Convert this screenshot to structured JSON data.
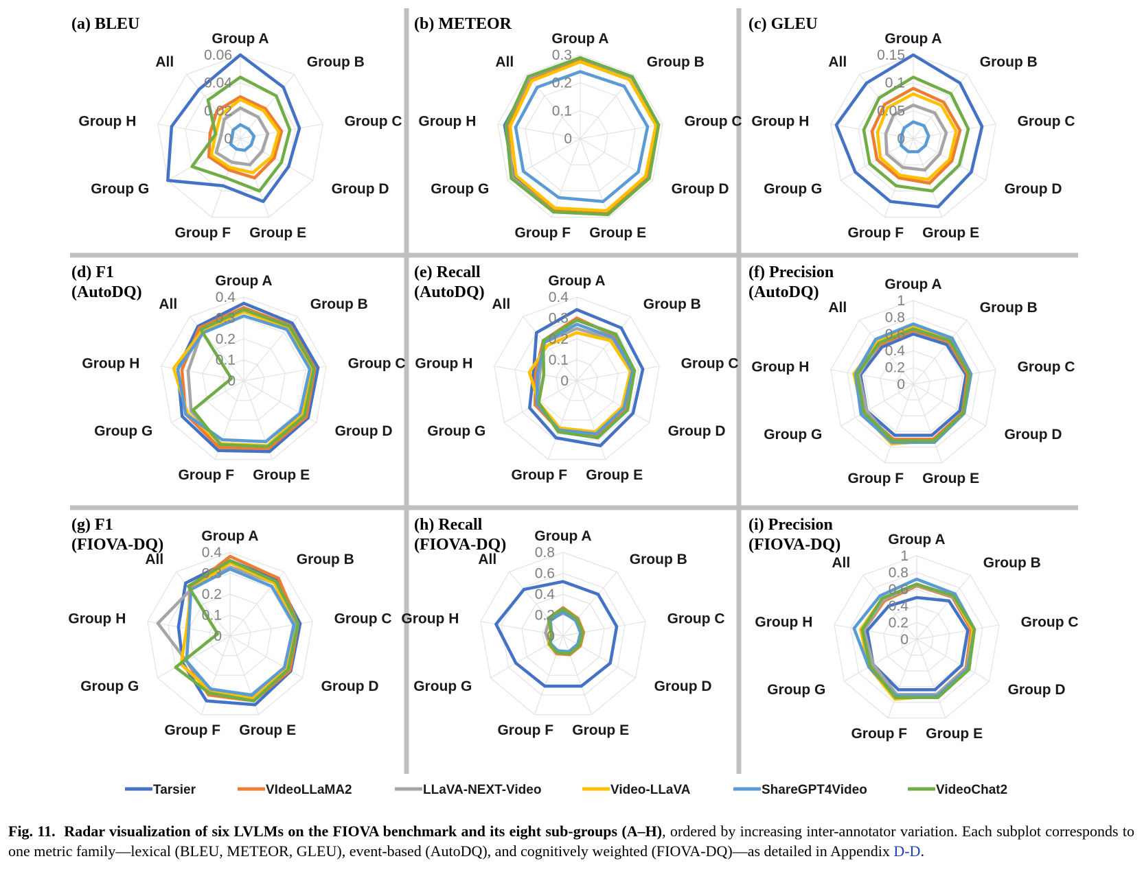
{
  "axes": [
    "Group A",
    "Group B",
    "Group C",
    "Group D",
    "Group E",
    "Group F",
    "Group G",
    "Group H",
    "All"
  ],
  "colors": {
    "Tarsier": "#4472c4",
    "VIdeoLLaMA2": "#ed7d31",
    "LLaVA-NEXT-Video": "#a5a5a5",
    "Video-LLaVA": "#ffc000",
    "ShareGPT4Video": "#5b9bd5",
    "VideoChat2": "#70ad47"
  },
  "legend": [
    "Tarsier",
    "VIdeoLLaMA2",
    "LLaVA-NEXT-Video",
    "Video-LLaVA",
    "ShareGPT4Video",
    "VideoChat2"
  ],
  "caption": {
    "fig_label": "Fig. 11.",
    "bold_text": "Radar visualization of six LVLMs on the FIOVA benchmark and its eight sub-groups (A–H)",
    "text": ", ordered by increasing inter-annotator variation. Each subplot corresponds to one metric family—lexical (BLEU, METEOR, GLEU), event-based (AutoDQ), and cognitively weighted (FIOVA-DQ)—as detailed in Appendix ",
    "link": "D-D",
    "end": "."
  },
  "chart_data": [
    {
      "type": "radar",
      "title": [
        "(a) BLEU"
      ],
      "rmax": 0.06,
      "ticks": [
        "0",
        "0.02",
        "0.04",
        "0.06"
      ],
      "series": [
        {
          "name": "Tarsier",
          "values": [
            0.06,
            0.048,
            0.043,
            0.04,
            0.048,
            0.036,
            0.06,
            0.05,
            0.046
          ]
        },
        {
          "name": "VIdeoLLaMA2",
          "values": [
            0.03,
            0.028,
            0.03,
            0.028,
            0.03,
            0.024,
            0.026,
            0.022,
            0.026
          ]
        },
        {
          "name": "LLaVA-NEXT-Video",
          "values": [
            0.022,
            0.02,
            0.02,
            0.018,
            0.02,
            0.018,
            0.02,
            0.014,
            0.018
          ]
        },
        {
          "name": "Video-LLaVA",
          "values": [
            0.028,
            0.026,
            0.028,
            0.026,
            0.026,
            0.022,
            0.024,
            0.018,
            0.022
          ]
        },
        {
          "name": "ShareGPT4Video",
          "values": [
            0.01,
            0.009,
            0.01,
            0.009,
            0.009,
            0.008,
            0.008,
            0.006,
            0.008
          ]
        },
        {
          "name": "VideoChat2",
          "values": [
            0.044,
            0.04,
            0.036,
            0.034,
            0.04,
            0.03,
            0.04,
            0.018,
            0.036
          ]
        }
      ]
    },
    {
      "type": "radar",
      "title": [
        "(b) METEOR"
      ],
      "rmax": 0.3,
      "ticks": [
        "0",
        "0.1",
        "0.2",
        "0.3"
      ],
      "series": [
        {
          "name": "Tarsier",
          "values": [
            0.285,
            0.28,
            0.28,
            0.275,
            0.28,
            0.27,
            0.275,
            0.275,
            0.28
          ]
        },
        {
          "name": "VIdeoLLaMA2",
          "values": [
            0.285,
            0.285,
            0.28,
            0.28,
            0.285,
            0.275,
            0.28,
            0.265,
            0.28
          ]
        },
        {
          "name": "LLaVA-NEXT-Video",
          "values": [
            0.29,
            0.285,
            0.285,
            0.285,
            0.29,
            0.28,
            0.28,
            0.27,
            0.285
          ]
        },
        {
          "name": "Video-LLaVA",
          "values": [
            0.275,
            0.275,
            0.275,
            0.27,
            0.275,
            0.265,
            0.265,
            0.255,
            0.27
          ]
        },
        {
          "name": "ShareGPT4Video",
          "values": [
            0.24,
            0.245,
            0.245,
            0.24,
            0.24,
            0.225,
            0.235,
            0.235,
            0.24
          ]
        },
        {
          "name": "VideoChat2",
          "values": [
            0.29,
            0.29,
            0.285,
            0.285,
            0.29,
            0.28,
            0.285,
            0.27,
            0.29
          ]
        }
      ]
    },
    {
      "type": "radar",
      "title": [
        "(c) GLEU"
      ],
      "rmax": 0.15,
      "ticks": [
        "0",
        "0.05",
        "0.1",
        "0.15"
      ],
      "series": [
        {
          "name": "Tarsier",
          "values": [
            0.15,
            0.13,
            0.125,
            0.12,
            0.13,
            0.12,
            0.12,
            0.14,
            0.13
          ]
        },
        {
          "name": "VIdeoLLaMA2",
          "values": [
            0.09,
            0.085,
            0.085,
            0.08,
            0.085,
            0.075,
            0.075,
            0.075,
            0.08
          ]
        },
        {
          "name": "LLaVA-NEXT-Video",
          "values": [
            0.06,
            0.06,
            0.06,
            0.055,
            0.06,
            0.055,
            0.055,
            0.05,
            0.055
          ]
        },
        {
          "name": "Video-LLaVA",
          "values": [
            0.08,
            0.078,
            0.078,
            0.075,
            0.078,
            0.07,
            0.068,
            0.065,
            0.072
          ]
        },
        {
          "name": "ShareGPT4Video",
          "values": [
            0.03,
            0.03,
            0.028,
            0.025,
            0.025,
            0.025,
            0.025,
            0.022,
            0.025
          ]
        },
        {
          "name": "VideoChat2",
          "values": [
            0.11,
            0.105,
            0.1,
            0.095,
            0.1,
            0.09,
            0.09,
            0.09,
            0.095
          ]
        }
      ]
    },
    {
      "type": "radar",
      "title": [
        "(d) F1",
        "(AutoDQ)"
      ],
      "rmax": 0.4,
      "ticks": [
        "0",
        "0.1",
        "0.2",
        "0.3",
        "0.4"
      ],
      "series": [
        {
          "name": "Tarsier",
          "values": [
            0.37,
            0.36,
            0.36,
            0.355,
            0.36,
            0.355,
            0.34,
            0.32,
            0.34
          ]
        },
        {
          "name": "VIdeoLLaMA2",
          "values": [
            0.35,
            0.345,
            0.345,
            0.345,
            0.345,
            0.34,
            0.32,
            0.3,
            0.33
          ]
        },
        {
          "name": "LLaVA-NEXT-Video",
          "values": [
            0.34,
            0.335,
            0.335,
            0.33,
            0.33,
            0.32,
            0.29,
            0.27,
            0.31
          ]
        },
        {
          "name": "Video-LLaVA",
          "values": [
            0.33,
            0.33,
            0.33,
            0.32,
            0.33,
            0.32,
            0.31,
            0.34,
            0.31
          ]
        },
        {
          "name": "ShareGPT4Video",
          "values": [
            0.31,
            0.32,
            0.32,
            0.31,
            0.31,
            0.3,
            0.32,
            0.32,
            0.3
          ]
        },
        {
          "name": "VideoChat2",
          "values": [
            0.34,
            0.34,
            0.34,
            0.335,
            0.335,
            0.325,
            0.28,
            0.06,
            0.32
          ]
        }
      ]
    },
    {
      "type": "radar",
      "title": [
        "(e) Recall",
        "(AutoDQ)"
      ],
      "rmax": 0.4,
      "ticks": [
        "0",
        "0.1",
        "0.2",
        "0.3",
        "0.4"
      ],
      "series": [
        {
          "name": "Tarsier",
          "values": [
            0.34,
            0.33,
            0.32,
            0.31,
            0.33,
            0.29,
            0.26,
            0.21,
            0.3
          ]
        },
        {
          "name": "VIdeoLLaMA2",
          "values": [
            0.3,
            0.28,
            0.27,
            0.27,
            0.28,
            0.25,
            0.23,
            0.2,
            0.25
          ]
        },
        {
          "name": "LLaVA-NEXT-Video",
          "values": [
            0.25,
            0.26,
            0.26,
            0.26,
            0.27,
            0.25,
            0.22,
            0.18,
            0.24
          ]
        },
        {
          "name": "Video-LLaVA",
          "values": [
            0.23,
            0.25,
            0.26,
            0.25,
            0.26,
            0.24,
            0.21,
            0.23,
            0.22
          ]
        },
        {
          "name": "ShareGPT4Video",
          "values": [
            0.27,
            0.27,
            0.27,
            0.26,
            0.27,
            0.25,
            0.22,
            0.19,
            0.24
          ]
        },
        {
          "name": "VideoChat2",
          "values": [
            0.29,
            0.29,
            0.28,
            0.28,
            0.29,
            0.26,
            0.21,
            0.16,
            0.25
          ]
        }
      ]
    },
    {
      "type": "radar",
      "title": [
        "(f) Precision",
        "(AutoDQ)"
      ],
      "rmax": 1,
      "ticks": [
        "0",
        "0.2",
        "0.4",
        "0.6",
        "0.8",
        "1"
      ],
      "series": [
        {
          "name": "Tarsier",
          "values": [
            0.6,
            0.62,
            0.64,
            0.64,
            0.65,
            0.65,
            0.64,
            0.64,
            0.58
          ]
        },
        {
          "name": "VIdeoLLaMA2",
          "values": [
            0.64,
            0.66,
            0.66,
            0.68,
            0.7,
            0.7,
            0.68,
            0.69,
            0.62
          ]
        },
        {
          "name": "LLaVA-NEXT-Video",
          "values": [
            0.66,
            0.68,
            0.68,
            0.69,
            0.72,
            0.73,
            0.64,
            0.66,
            0.64
          ]
        },
        {
          "name": "Video-LLaVA",
          "values": [
            0.7,
            0.7,
            0.68,
            0.7,
            0.72,
            0.76,
            0.7,
            0.72,
            0.66
          ]
        },
        {
          "name": "ShareGPT4Video",
          "values": [
            0.72,
            0.72,
            0.7,
            0.7,
            0.74,
            0.74,
            0.72,
            0.7,
            0.7
          ]
        },
        {
          "name": "VideoChat2",
          "values": [
            0.66,
            0.68,
            0.68,
            0.69,
            0.72,
            0.72,
            0.68,
            0.68,
            0.64
          ]
        }
      ]
    },
    {
      "type": "radar",
      "title": [
        "(g) F1",
        "(FIOVA-DQ)"
      ],
      "rmax": 0.4,
      "ticks": [
        "0",
        "0.1",
        "0.2",
        "0.3",
        "0.4"
      ],
      "series": [
        {
          "name": "Tarsier",
          "values": [
            0.36,
            0.35,
            0.34,
            0.335,
            0.35,
            0.33,
            0.26,
            0.25,
            0.33
          ]
        },
        {
          "name": "VIdeoLLaMA2",
          "values": [
            0.38,
            0.36,
            0.33,
            0.33,
            0.33,
            0.3,
            0.24,
            0.2,
            0.3
          ]
        },
        {
          "name": "LLaVA-NEXT-Video",
          "values": [
            0.33,
            0.33,
            0.32,
            0.31,
            0.31,
            0.28,
            0.24,
            0.35,
            0.29
          ]
        },
        {
          "name": "Video-LLaVA",
          "values": [
            0.35,
            0.33,
            0.31,
            0.31,
            0.32,
            0.28,
            0.27,
            0.21,
            0.29
          ]
        },
        {
          "name": "ShareGPT4Video",
          "values": [
            0.32,
            0.31,
            0.31,
            0.3,
            0.3,
            0.27,
            0.24,
            0.2,
            0.29
          ]
        },
        {
          "name": "VideoChat2",
          "values": [
            0.36,
            0.34,
            0.33,
            0.32,
            0.33,
            0.29,
            0.3,
            0.06,
            0.31
          ]
        }
      ]
    },
    {
      "type": "radar",
      "title": [
        "(h) Recall",
        "(FIOVA-DQ)"
      ],
      "rmax": 0.8,
      "ticks": [
        "0",
        "0.2",
        "0.4",
        "0.6",
        "0.8"
      ],
      "series": [
        {
          "name": "Tarsier",
          "values": [
            0.52,
            0.52,
            0.52,
            0.52,
            0.51,
            0.51,
            0.52,
            0.65,
            0.58
          ]
        },
        {
          "name": "VIdeoLLaMA2",
          "values": [
            0.27,
            0.22,
            0.2,
            0.19,
            0.19,
            0.18,
            0.16,
            0.11,
            0.22
          ]
        },
        {
          "name": "LLaVA-NEXT-Video",
          "values": [
            0.22,
            0.2,
            0.18,
            0.17,
            0.17,
            0.16,
            0.15,
            0.17,
            0.2
          ]
        },
        {
          "name": "Video-LLaVA",
          "values": [
            0.26,
            0.21,
            0.19,
            0.18,
            0.18,
            0.17,
            0.16,
            0.12,
            0.21
          ]
        },
        {
          "name": "ShareGPT4Video",
          "values": [
            0.23,
            0.19,
            0.17,
            0.16,
            0.16,
            0.15,
            0.14,
            0.11,
            0.19
          ]
        },
        {
          "name": "VideoChat2",
          "values": [
            0.26,
            0.21,
            0.19,
            0.18,
            0.18,
            0.17,
            0.15,
            0.11,
            0.22
          ]
        }
      ]
    },
    {
      "type": "radar",
      "title": [
        "(i) Precision",
        "(FIOVA-DQ)"
      ],
      "rmax": 1,
      "ticks": [
        "0",
        "0.2",
        "0.4",
        "0.6",
        "0.8",
        "1"
      ],
      "series": [
        {
          "name": "Tarsier",
          "values": [
            0.5,
            0.6,
            0.62,
            0.62,
            0.64,
            0.64,
            0.6,
            0.6,
            0.52
          ]
        },
        {
          "name": "VIdeoLLaMA2",
          "values": [
            0.64,
            0.66,
            0.66,
            0.68,
            0.7,
            0.72,
            0.62,
            0.64,
            0.6
          ]
        },
        {
          "name": "LLaVA-NEXT-Video",
          "values": [
            0.65,
            0.67,
            0.68,
            0.69,
            0.7,
            0.7,
            0.6,
            0.64,
            0.62
          ]
        },
        {
          "name": "Video-LLaVA",
          "values": [
            0.66,
            0.68,
            0.68,
            0.7,
            0.72,
            0.76,
            0.66,
            0.68,
            0.64
          ]
        },
        {
          "name": "ShareGPT4Video",
          "values": [
            0.72,
            0.71,
            0.7,
            0.7,
            0.72,
            0.72,
            0.66,
            0.76,
            0.68
          ]
        },
        {
          "name": "VideoChat2",
          "values": [
            0.66,
            0.68,
            0.7,
            0.72,
            0.74,
            0.74,
            0.64,
            0.66,
            0.64
          ]
        }
      ]
    }
  ]
}
